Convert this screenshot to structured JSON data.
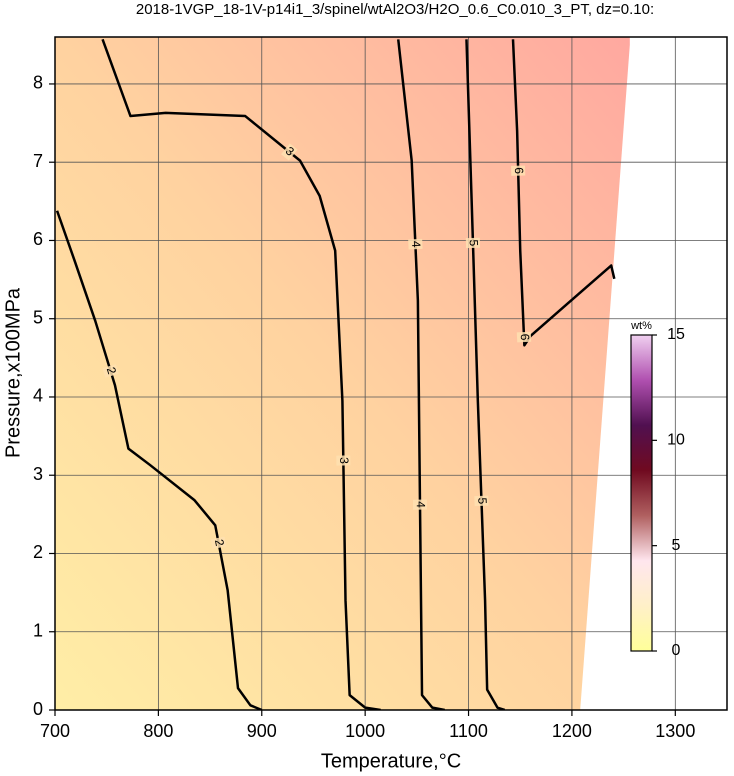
{
  "chart_data": {
    "type": "contour",
    "title": "2018-1VGP_18-1V-p14i1_3/spinel/wtAl2O3/H2O_0.6_C0.010_3_PT, dz=0.10:",
    "x_label": "Temperature,°C",
    "y_label": "Pressure,x100MPa",
    "xlim": [
      700,
      1350
    ],
    "ylim": [
      0,
      8.6
    ],
    "xticks": [
      700,
      800,
      900,
      1000,
      1100,
      1200,
      1300
    ],
    "yticks": [
      0,
      1,
      2,
      3,
      4,
      5,
      6,
      7,
      8
    ],
    "grid": true,
    "field_colors": [
      "#ffeea6",
      "#ffd2a0",
      "#ffa8a0"
    ],
    "domain_edge": {
      "x": [
        1208,
        1256
      ],
      "y": [
        0,
        8.5
      ]
    },
    "contour_color": "#000000",
    "contours": [
      {
        "level": 2,
        "x": [
          702,
          719,
          739,
          758,
          771,
          792,
          835,
          855,
          867,
          877,
          889,
          900
        ],
        "y": [
          6.38,
          5.74,
          4.97,
          4.15,
          3.34,
          3.13,
          2.68,
          2.36,
          1.53,
          0.28,
          0.06,
          0
        ]
      },
      {
        "level": 3,
        "x": [
          746,
          773,
          807,
          884,
          937,
          956,
          971,
          978,
          981,
          985,
          1000,
          1015
        ],
        "y": [
          8.57,
          7.59,
          7.63,
          7.59,
          7.02,
          6.57,
          5.87,
          3.95,
          1.4,
          0.19,
          0.03,
          0
        ]
      },
      {
        "level": 4,
        "x": [
          1032,
          1045,
          1051,
          1053,
          1055,
          1065,
          1077
        ],
        "y": [
          8.57,
          7.02,
          5.23,
          2.68,
          0.19,
          0.03,
          0
        ]
      },
      {
        "level": 5,
        "x": [
          1098,
          1103,
          1109,
          1116,
          1118,
          1128,
          1135
        ],
        "y": [
          8.57,
          6.51,
          3.95,
          1.4,
          0.26,
          0.03,
          0
        ]
      },
      {
        "level": 6,
        "x": [
          1143,
          1147,
          1150,
          1154,
          1160,
          1199,
          1238,
          1241
        ],
        "y": [
          8.57,
          7.4,
          5.87,
          4.66,
          4.78,
          5.23,
          5.68,
          5.51
        ]
      }
    ],
    "colorbar": {
      "label": "wt%",
      "lim": [
        0,
        15
      ],
      "ticks": [
        0,
        5,
        10,
        15
      ],
      "colors": [
        "#ffff99",
        "#fff0c8",
        "#ffe6ee",
        "#b06060",
        "#700a20",
        "#501050",
        "#b050b0",
        "#f0d0f0"
      ]
    }
  }
}
